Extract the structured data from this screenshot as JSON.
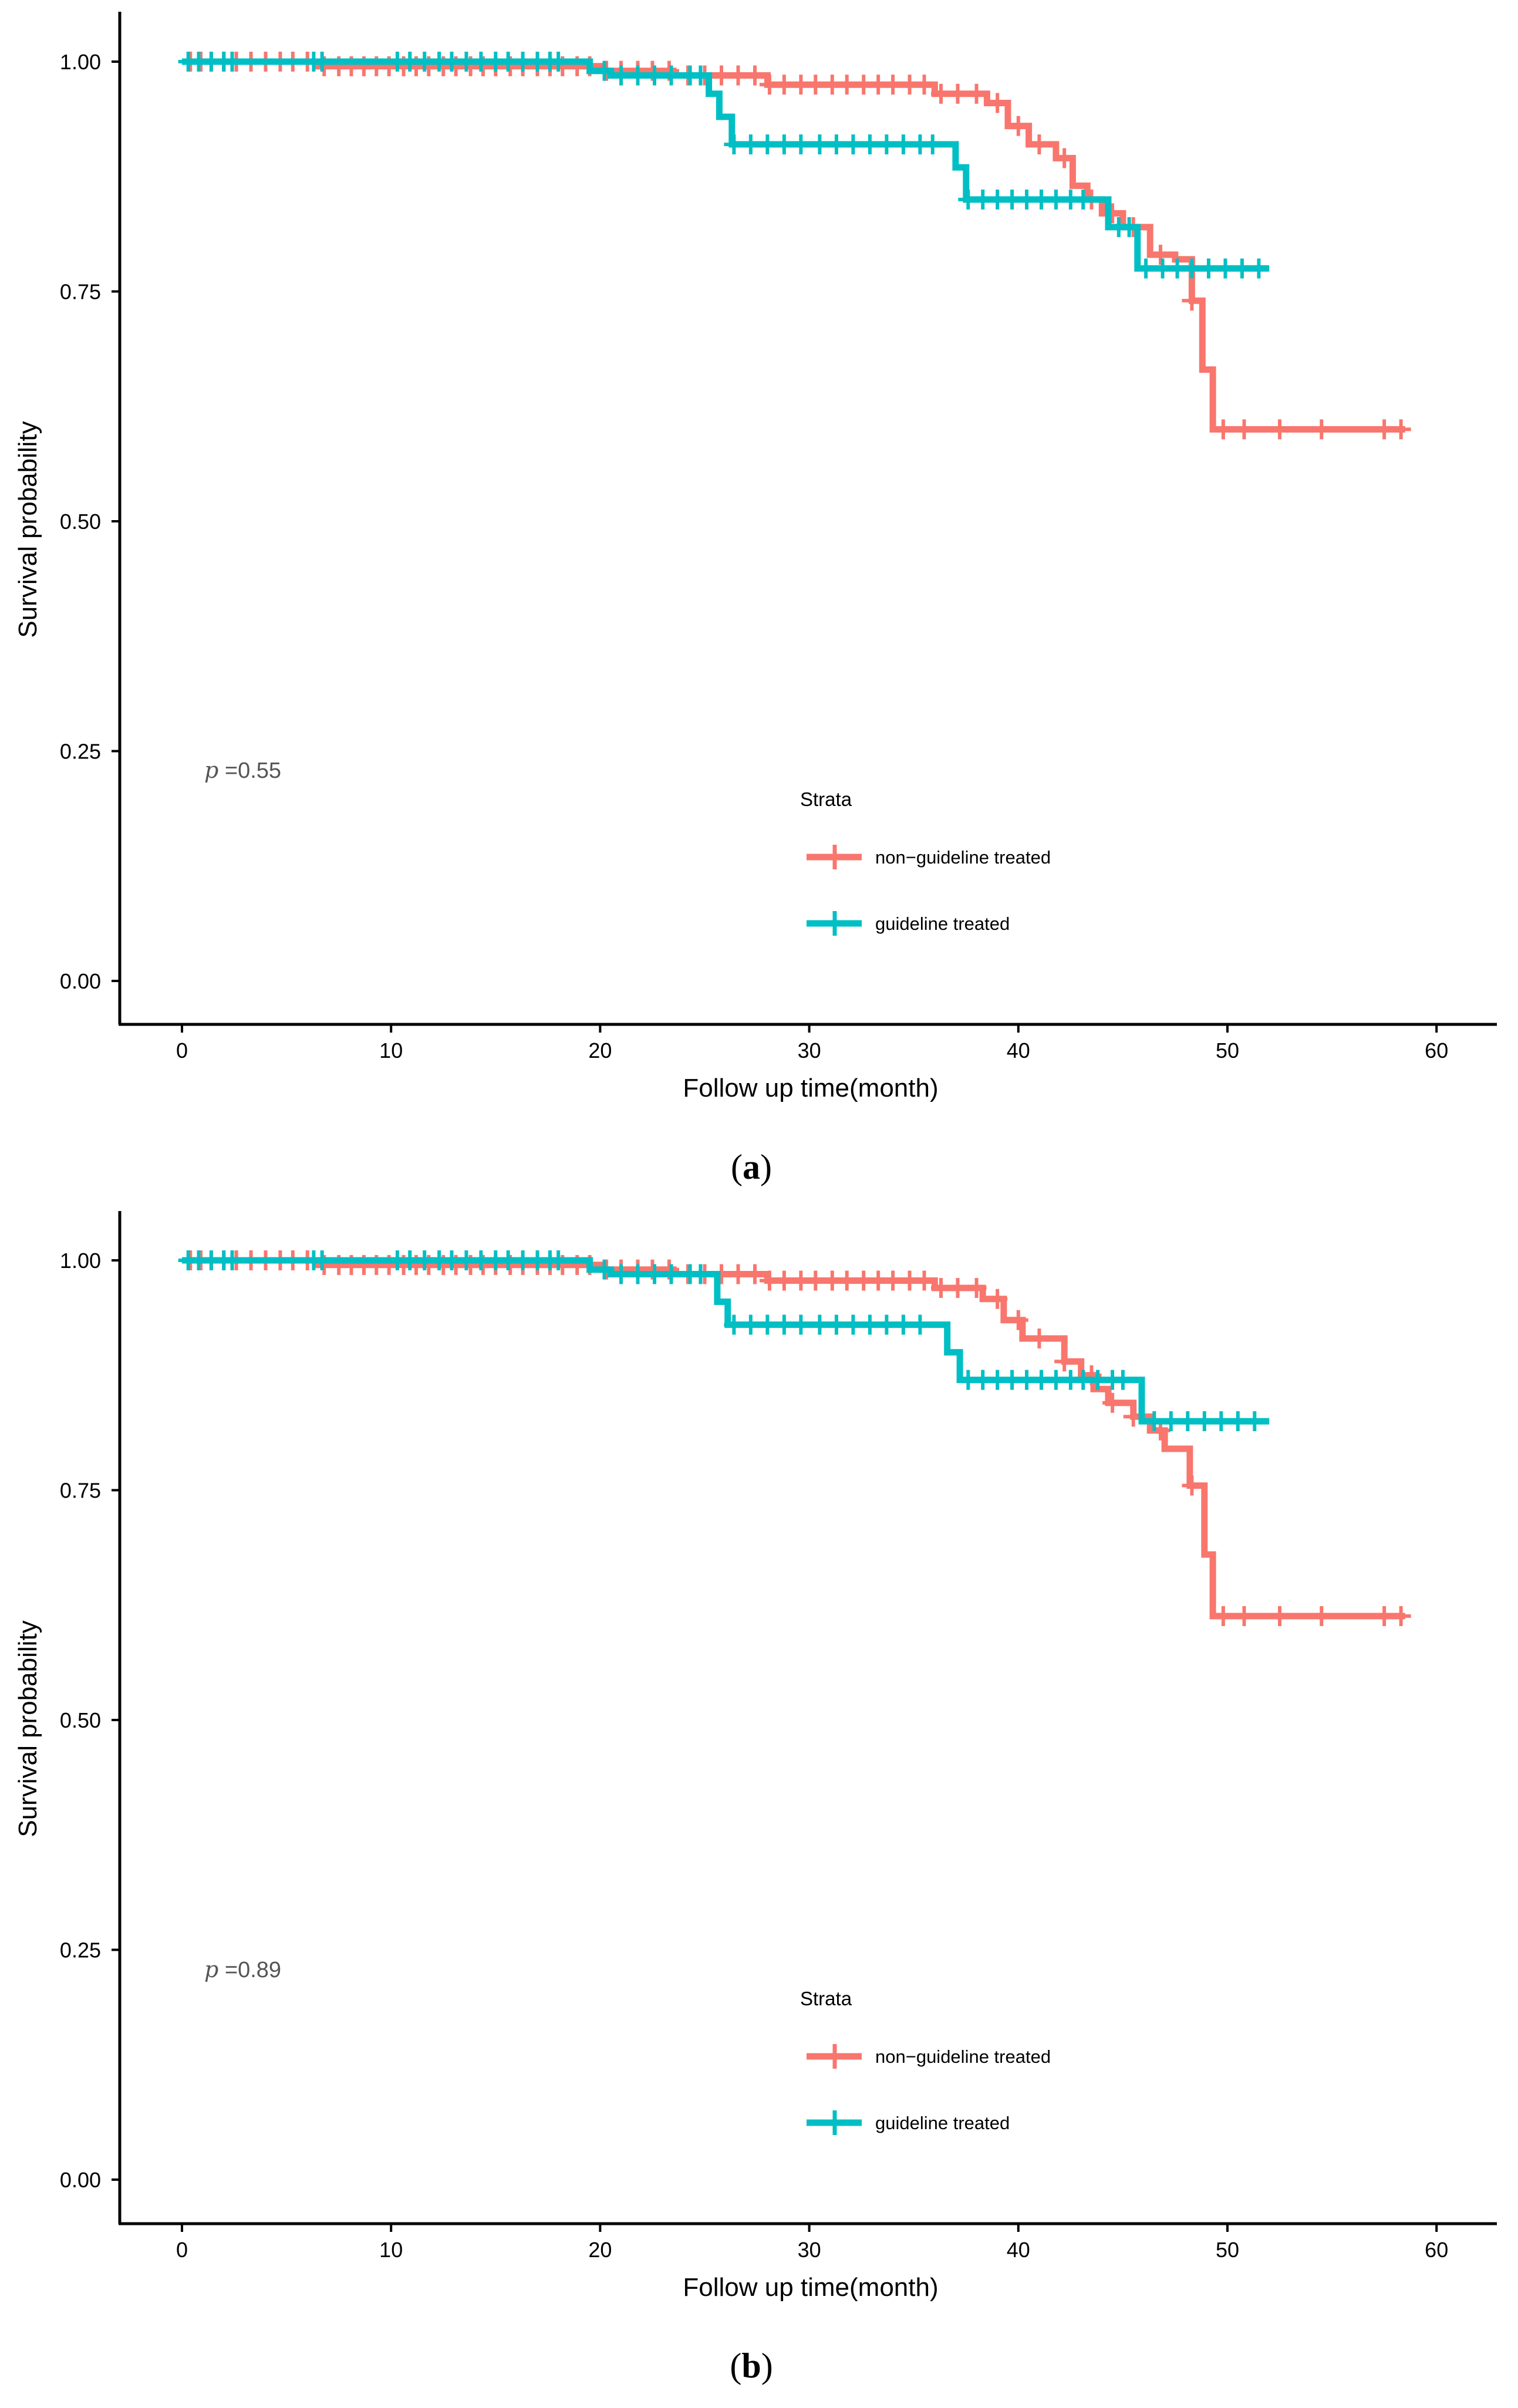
{
  "colors": {
    "non_guideline": "#F8766D",
    "guideline": "#00BFC4",
    "axis": "#000000"
  },
  "chart_data": [
    {
      "panel": "a",
      "type": "line",
      "subtype": "kaplan-meier",
      "title": "",
      "xlabel": "Follow up time(month)",
      "ylabel": "Survival probability",
      "xlim": [
        -3,
        63
      ],
      "ylim": [
        -0.05,
        1.05
      ],
      "x_ticks": [
        0,
        10,
        20,
        30,
        40,
        50,
        60
      ],
      "x_tick_labels": [
        "0",
        "10",
        "20",
        "30",
        "40",
        "50",
        "60"
      ],
      "y_ticks": [
        0,
        0.25,
        0.5,
        0.75,
        1
      ],
      "y_tick_labels": [
        "0.00",
        "0.25",
        "0.50",
        "0.75",
        "1.00"
      ],
      "grid": false,
      "pvalue": {
        "prefix": "p",
        "text": " =0.55"
      },
      "legend": {
        "title": "Strata",
        "position": "inside-bottom-center"
      },
      "series": [
        {
          "name": "non−guideline treated",
          "color_key": "non_guideline",
          "steps": [
            [
              0,
              1.0
            ],
            [
              3,
              1.0
            ],
            [
              6.5,
              0.995
            ],
            [
              20,
              0.99
            ],
            [
              23.5,
              0.985
            ],
            [
              24.8,
              0.985
            ],
            [
              28,
              0.975
            ],
            [
              36,
              0.965
            ],
            [
              38.5,
              0.955
            ],
            [
              39.5,
              0.93
            ],
            [
              40.5,
              0.91
            ],
            [
              41.8,
              0.895
            ],
            [
              42.6,
              0.865
            ],
            [
              43.3,
              0.85
            ],
            [
              44,
              0.835
            ],
            [
              45,
              0.82
            ],
            [
              46.3,
              0.79
            ],
            [
              47.5,
              0.785
            ],
            [
              48.3,
              0.74
            ],
            [
              48.8,
              0.665
            ],
            [
              49.3,
              0.6
            ],
            [
              58.5,
              0.6
            ]
          ],
          "censor_times": [
            0.4,
            0.9,
            1.4,
            2.0,
            2.6,
            3.3,
            4.0,
            4.7,
            5.3,
            6.0,
            6.8,
            7.5,
            8.1,
            8.7,
            9.3,
            9.9,
            10.6,
            11.2,
            11.8,
            12.5,
            13.1,
            13.8,
            14.4,
            15.0,
            15.7,
            16.3,
            17.0,
            17.6,
            18.2,
            18.9,
            19.5,
            20.3,
            21.0,
            21.8,
            22.5,
            23.3,
            24.2,
            25.0,
            25.8,
            26.6,
            27.4,
            28.1,
            28.8,
            29.6,
            30.3,
            31.1,
            31.8,
            32.6,
            33.3,
            34.0,
            34.8,
            35.5,
            36.3,
            37.1,
            38.0,
            39.0,
            40.0,
            41.0,
            42.2,
            43.5,
            44.5,
            45.5,
            46.8,
            48.3,
            49.8,
            50.8,
            52.5,
            54.5,
            57.5,
            58.3
          ]
        },
        {
          "name": "guideline treated",
          "color_key": "guideline",
          "steps": [
            [
              0,
              1.0
            ],
            [
              18.3,
              1.0
            ],
            [
              19.5,
              0.99
            ],
            [
              20.5,
              0.985
            ],
            [
              25.2,
              0.965
            ],
            [
              25.7,
              0.94
            ],
            [
              26.3,
              0.91
            ],
            [
              36.3,
              0.91
            ],
            [
              37.0,
              0.885
            ],
            [
              37.5,
              0.85
            ],
            [
              43.3,
              0.85
            ],
            [
              44.3,
              0.82
            ],
            [
              45.7,
              0.775
            ],
            [
              52,
              0.775
            ]
          ],
          "censor_times": [
            0.3,
            0.8,
            1.4,
            2.0,
            2.4,
            6.3,
            6.7,
            10.3,
            10.9,
            11.6,
            12.3,
            12.9,
            13.6,
            14.3,
            15.0,
            15.6,
            16.3,
            17.0,
            17.6,
            18.0,
            20.2,
            21.0,
            21.8,
            22.6,
            23.4,
            24.3,
            24.8,
            26.4,
            27.2,
            28.0,
            28.8,
            29.6,
            30.5,
            31.3,
            32.1,
            32.9,
            33.7,
            34.5,
            35.3,
            35.9,
            37.6,
            38.3,
            39.0,
            39.7,
            40.4,
            41.1,
            41.8,
            42.5,
            43.1,
            44.8,
            45.3,
            46.1,
            46.9,
            47.6,
            48.3,
            49.1,
            49.9,
            50.7,
            51.5
          ]
        }
      ]
    },
    {
      "panel": "b",
      "type": "line",
      "subtype": "kaplan-meier",
      "title": "",
      "xlabel": "Follow up time(month)",
      "ylabel": "Survival probability",
      "xlim": [
        -3,
        63
      ],
      "ylim": [
        -0.05,
        1.05
      ],
      "x_ticks": [
        0,
        10,
        20,
        30,
        40,
        50,
        60
      ],
      "x_tick_labels": [
        "0",
        "10",
        "20",
        "30",
        "40",
        "50",
        "60"
      ],
      "y_ticks": [
        0,
        0.25,
        0.5,
        0.75,
        1
      ],
      "y_tick_labels": [
        "0.00",
        "0.25",
        "0.50",
        "0.75",
        "1.00"
      ],
      "grid": false,
      "pvalue": {
        "prefix": "p",
        "text": " =0.89"
      },
      "legend": {
        "title": "Strata",
        "position": "inside-bottom-center"
      },
      "series": [
        {
          "name": "non−guideline treated",
          "color_key": "non_guideline",
          "steps": [
            [
              0,
              1.0
            ],
            [
              3,
              1.0
            ],
            [
              6.5,
              0.995
            ],
            [
              20,
              0.99
            ],
            [
              23.5,
              0.985
            ],
            [
              24.8,
              0.985
            ],
            [
              28,
              0.978
            ],
            [
              36,
              0.97
            ],
            [
              38.3,
              0.958
            ],
            [
              39.3,
              0.935
            ],
            [
              40.2,
              0.915
            ],
            [
              42.2,
              0.89
            ],
            [
              43.0,
              0.875
            ],
            [
              43.6,
              0.86
            ],
            [
              44.3,
              0.845
            ],
            [
              45.5,
              0.83
            ],
            [
              46.3,
              0.815
            ],
            [
              47.0,
              0.795
            ],
            [
              48.2,
              0.755
            ],
            [
              48.9,
              0.68
            ],
            [
              49.3,
              0.613
            ],
            [
              58.5,
              0.613
            ]
          ],
          "censor_times": [
            0.4,
            0.9,
            1.4,
            2.0,
            2.6,
            3.3,
            4.0,
            4.7,
            5.3,
            6.0,
            6.8,
            7.5,
            8.1,
            8.7,
            9.3,
            9.9,
            10.6,
            11.2,
            11.8,
            12.5,
            13.1,
            13.8,
            14.4,
            15.0,
            15.7,
            16.3,
            17.0,
            17.6,
            18.2,
            18.9,
            19.5,
            20.3,
            21.0,
            21.8,
            22.5,
            23.3,
            24.2,
            25.0,
            25.8,
            26.6,
            27.4,
            28.1,
            28.8,
            29.6,
            30.3,
            31.1,
            31.8,
            32.6,
            33.3,
            34.0,
            34.8,
            35.5,
            36.3,
            37.1,
            38.0,
            39.0,
            40.0,
            41.0,
            42.2,
            43.5,
            44.5,
            45.5,
            46.8,
            48.3,
            49.8,
            50.8,
            52.5,
            54.5,
            57.5,
            58.3
          ]
        },
        {
          "name": "guideline treated",
          "color_key": "guideline",
          "steps": [
            [
              0,
              1.0
            ],
            [
              18.3,
              1.0
            ],
            [
              19.5,
              0.99
            ],
            [
              20.5,
              0.985
            ],
            [
              25.6,
              0.955
            ],
            [
              26.1,
              0.93
            ],
            [
              35.8,
              0.93
            ],
            [
              36.6,
              0.9
            ],
            [
              37.2,
              0.87
            ],
            [
              45.3,
              0.87
            ],
            [
              45.9,
              0.825
            ],
            [
              52,
              0.825
            ]
          ],
          "censor_times": [
            0.3,
            0.8,
            1.4,
            2.0,
            2.4,
            6.3,
            6.7,
            10.3,
            10.9,
            11.6,
            12.3,
            12.9,
            13.6,
            14.3,
            15.0,
            15.6,
            16.3,
            17.0,
            17.6,
            18.0,
            20.2,
            21.0,
            21.8,
            22.6,
            23.4,
            24.3,
            24.8,
            26.4,
            27.2,
            28.0,
            28.8,
            29.6,
            30.5,
            31.3,
            32.1,
            32.9,
            33.7,
            34.5,
            35.3,
            37.6,
            38.3,
            39.0,
            39.7,
            40.4,
            41.1,
            41.8,
            42.5,
            43.1,
            43.8,
            44.5,
            45.0,
            46.5,
            47.3,
            48.1,
            48.9,
            49.7,
            50.5,
            51.3
          ]
        }
      ]
    }
  ],
  "captions": [
    {
      "open": "(",
      "letter": "a",
      "close": ")"
    },
    {
      "open": "(",
      "letter": "b",
      "close": ")"
    }
  ]
}
